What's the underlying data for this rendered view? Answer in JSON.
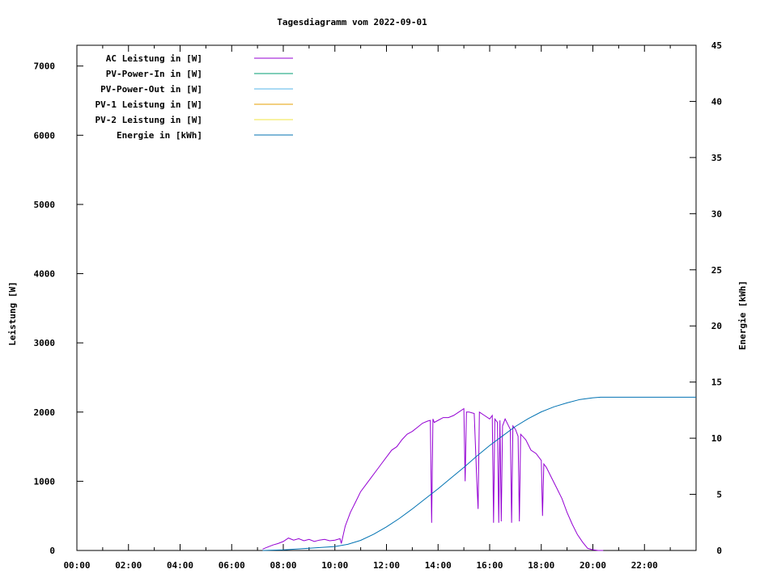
{
  "chart_data": {
    "type": "line",
    "title": "Tagesdiagramm vom 2022-09-01",
    "xlabel": "",
    "ylabel": "Leistung [W]",
    "y2label": "Energie [kWh]",
    "xlim": [
      0,
      24
    ],
    "ylim": [
      0,
      7300
    ],
    "y2lim": [
      0,
      45
    ],
    "x_ticks": [
      "00:00",
      "02:00",
      "04:00",
      "06:00",
      "08:00",
      "10:00",
      "12:00",
      "14:00",
      "16:00",
      "18:00",
      "20:00",
      "22:00"
    ],
    "y_ticks": [
      0,
      1000,
      2000,
      3000,
      4000,
      5000,
      6000,
      7000
    ],
    "y2_ticks": [
      0,
      5,
      10,
      15,
      20,
      25,
      30,
      35,
      40,
      45
    ],
    "grid": false,
    "legend_position": "top-left",
    "series": [
      {
        "name": "AC Leistung in [W]",
        "color": "#9400d3",
        "axis": "left",
        "x": [
          7.2,
          7.4,
          7.6,
          7.8,
          8.0,
          8.2,
          8.4,
          8.6,
          8.8,
          9.0,
          9.2,
          9.4,
          9.6,
          9.8,
          10.0,
          10.2,
          10.25,
          10.4,
          10.6,
          10.8,
          11.0,
          11.2,
          11.4,
          11.6,
          11.8,
          12.0,
          12.2,
          12.4,
          12.6,
          12.8,
          13.0,
          13.2,
          13.4,
          13.6,
          13.7,
          13.75,
          13.8,
          13.85,
          14.0,
          14.2,
          14.4,
          14.6,
          14.8,
          15.0,
          15.05,
          15.1,
          15.2,
          15.4,
          15.5,
          15.55,
          15.6,
          15.8,
          16.0,
          16.1,
          16.15,
          16.2,
          16.3,
          16.35,
          16.4,
          16.45,
          16.5,
          16.6,
          16.8,
          16.85,
          16.9,
          17.0,
          17.1,
          17.15,
          17.2,
          17.4,
          17.6,
          17.8,
          18.0,
          18.05,
          18.1,
          18.2,
          18.4,
          18.6,
          18.8,
          19.0,
          19.2,
          19.4,
          19.6,
          19.8,
          20.0,
          20.2,
          20.4
        ],
        "y": [
          20,
          50,
          80,
          100,
          130,
          180,
          150,
          170,
          140,
          160,
          130,
          150,
          160,
          140,
          150,
          170,
          100,
          350,
          550,
          700,
          850,
          950,
          1050,
          1150,
          1250,
          1350,
          1450,
          1500,
          1600,
          1680,
          1720,
          1780,
          1840,
          1870,
          1880,
          400,
          1900,
          1850,
          1880,
          1920,
          1920,
          1950,
          2000,
          2050,
          1000,
          2000,
          2000,
          1980,
          1000,
          600,
          2000,
          1950,
          1900,
          1950,
          400,
          1900,
          1850,
          400,
          1880,
          420,
          1800,
          1900,
          1750,
          400,
          1800,
          1750,
          1650,
          420,
          1680,
          1600,
          1450,
          1400,
          1300,
          500,
          1250,
          1200,
          1050,
          900,
          750,
          550,
          380,
          230,
          120,
          30,
          10,
          0,
          0
        ]
      },
      {
        "name": "PV-Power-In in [W]",
        "color": "#009e73",
        "axis": "left",
        "x": [],
        "y": []
      },
      {
        "name": "PV-Power-Out in [W]",
        "color": "#56b4e9",
        "axis": "left",
        "x": [],
        "y": []
      },
      {
        "name": "PV-1 Leistung in [W]",
        "color": "#e69f00",
        "axis": "left",
        "x": [],
        "y": []
      },
      {
        "name": "PV-2 Leistung in [W]",
        "color": "#f0e442",
        "axis": "left",
        "x": [],
        "y": []
      },
      {
        "name": "Energie in [kWh]",
        "color": "#0072b2",
        "axis": "right",
        "x": [
          7.2,
          8.0,
          9.0,
          10.0,
          10.5,
          11.0,
          11.5,
          12.0,
          12.5,
          13.0,
          13.5,
          14.0,
          14.5,
          15.0,
          15.5,
          16.0,
          16.5,
          17.0,
          17.5,
          18.0,
          18.5,
          19.0,
          19.5,
          20.0,
          20.3,
          21.0,
          22.0,
          23.0,
          24.0
        ],
        "y": [
          0.0,
          0.05,
          0.2,
          0.35,
          0.55,
          0.9,
          1.45,
          2.1,
          2.85,
          3.7,
          4.6,
          5.5,
          6.45,
          7.4,
          8.4,
          9.35,
          10.2,
          11.05,
          11.75,
          12.35,
          12.8,
          13.15,
          13.45,
          13.6,
          13.65,
          13.65,
          13.65,
          13.65,
          13.65
        ]
      }
    ]
  }
}
